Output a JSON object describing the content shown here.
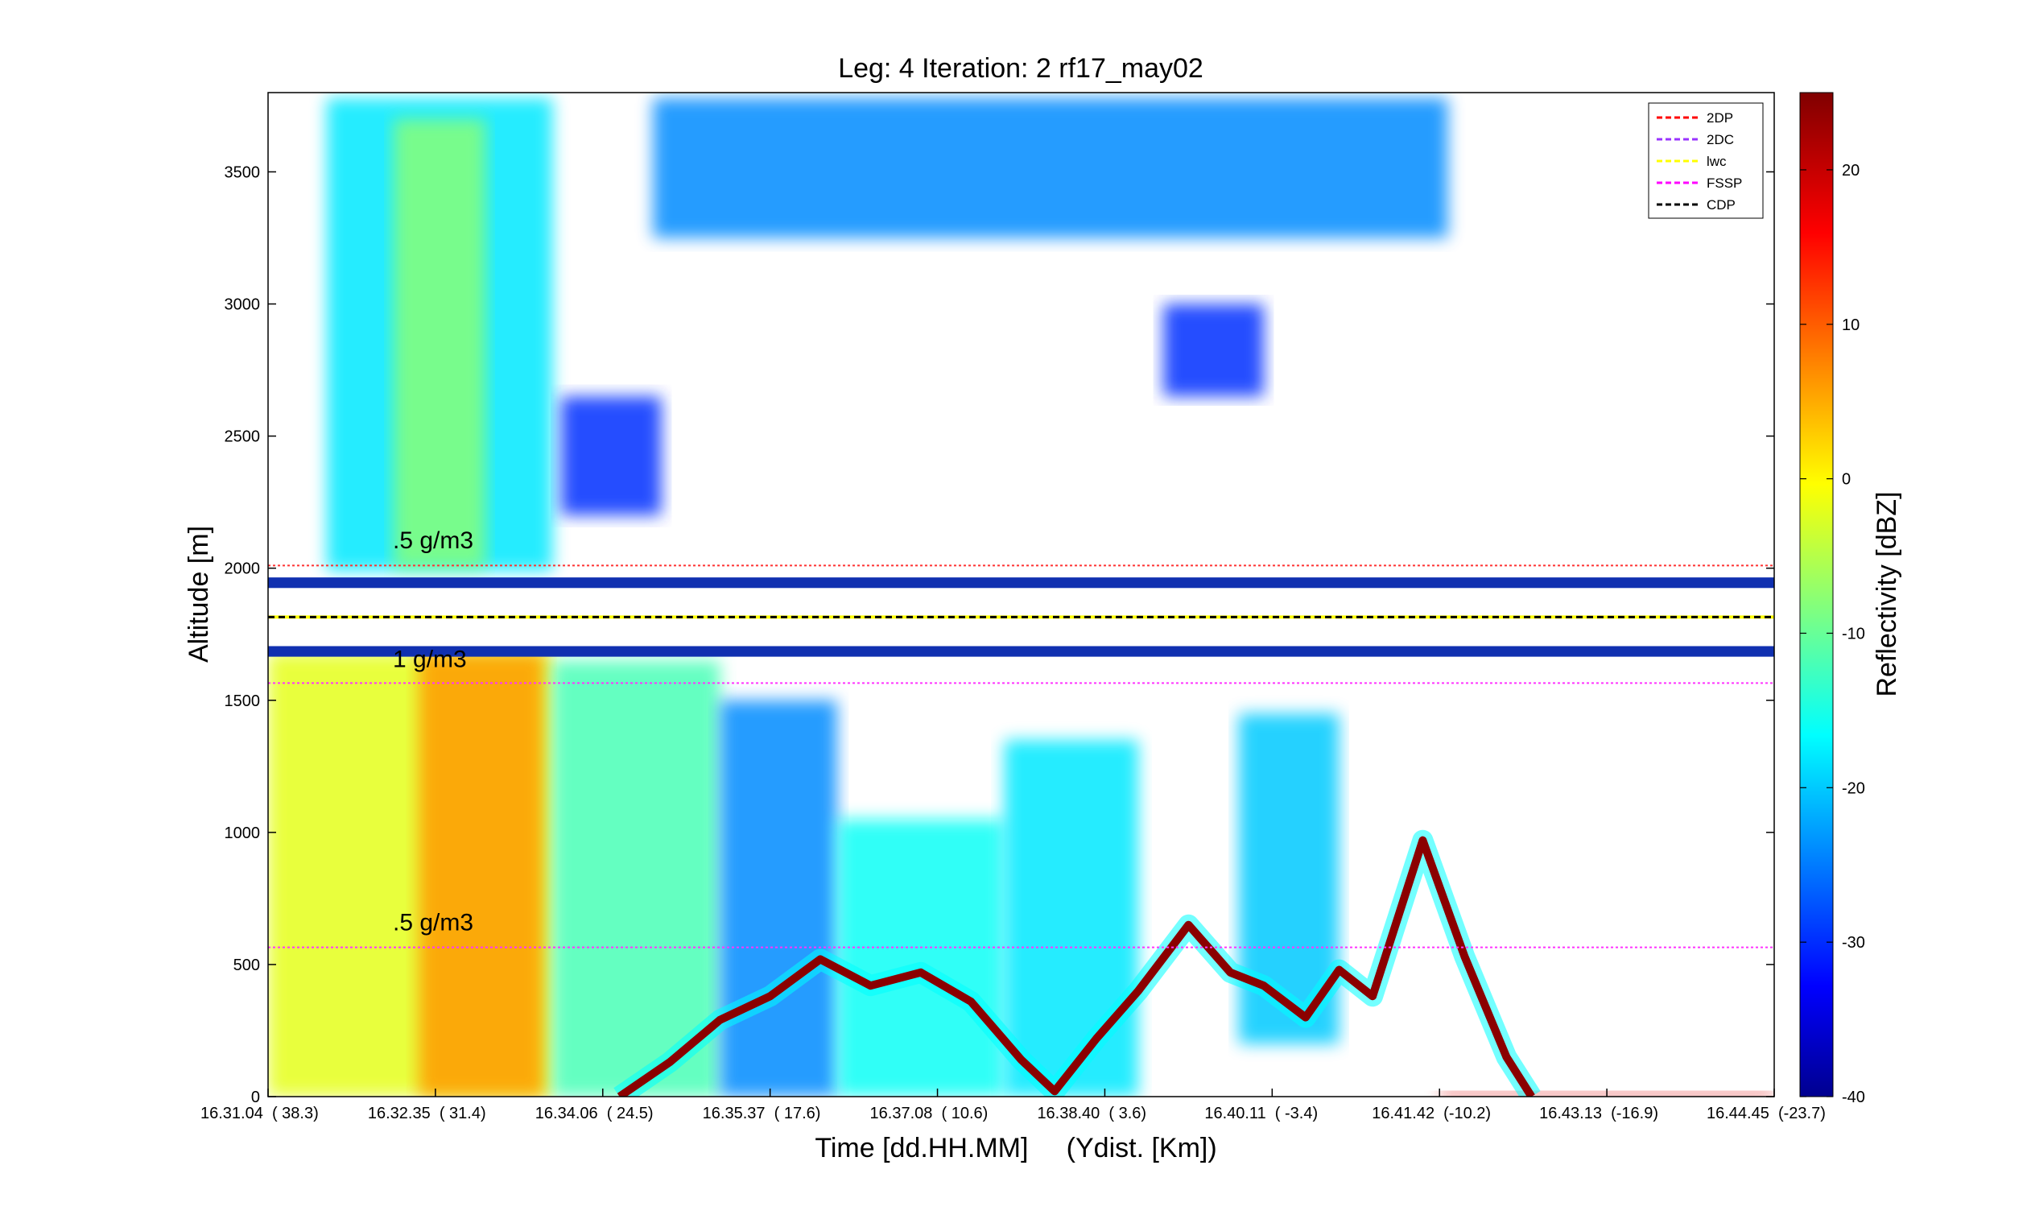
{
  "chart_data": {
    "type": "heatmap",
    "title": "Leg: 4  Iteration: 2  rf17_may02",
    "xlabel": "Time [dd.HH.MM]     (Ydist. [Km])",
    "ylabel": "Altitude [m]",
    "colorbar_label": "Reflectivity [dBZ]",
    "colormap": "jet",
    "ylim": [
      0,
      3800
    ],
    "yticks": [
      0,
      500,
      1000,
      1500,
      2000,
      2500,
      3000,
      3500
    ],
    "xtick_labels": [
      {
        "time": "16.31.04",
        "ydist": "( 38.3)"
      },
      {
        "time": "16.32.35",
        "ydist": "( 31.4)"
      },
      {
        "time": "16.34.06",
        "ydist": "( 24.5)"
      },
      {
        "time": "16.35.37",
        "ydist": "( 17.6)"
      },
      {
        "time": "16.37.08",
        "ydist": "( 10.6)"
      },
      {
        "time": "16.38.40",
        "ydist": "( 3.6)"
      },
      {
        "time": "16.40.11",
        "ydist": "( -3.4)"
      },
      {
        "time": "16.41.42",
        "ydist": "(-10.2)"
      },
      {
        "time": "16.43.13",
        "ydist": "(-16.9)"
      },
      {
        "time": "16.44.45",
        "ydist": "(-23.7)"
      }
    ],
    "x_range": [
      0,
      9
    ],
    "clim": [
      -40,
      25
    ],
    "colorbar_ticks": [
      -40,
      -30,
      -20,
      -10,
      0,
      10,
      20
    ],
    "legend_position": "top-right",
    "legend": [
      {
        "name": "2DP",
        "color": "#ff0000"
      },
      {
        "name": "2DC",
        "color": "#9933ff"
      },
      {
        "name": "lwc",
        "color": "#ffff00"
      },
      {
        "name": "FSSP",
        "color": "#ff00ff"
      },
      {
        "name": "CDP",
        "color": "#000000"
      }
    ],
    "reference_lines": [
      {
        "altitude": 2010,
        "color": "#ff3333"
      },
      {
        "altitude": 1565,
        "color": "#ff33ff"
      },
      {
        "altitude": 565,
        "color": "#ff33ff"
      }
    ],
    "flight_level": 1815,
    "annotations": [
      {
        "text": ".5 g/m3",
        "altitude": 2075
      },
      {
        "text": "1 g/m3",
        "altitude": 1625
      },
      {
        "text": ".5 g/m3",
        "altitude": 630
      }
    ],
    "echo_regions": [
      {
        "name": "upper cloud",
        "x0": 0.35,
        "x1": 1.7,
        "y0": 1990,
        "y1": 3780,
        "dbz": -18
      },
      {
        "name": "upper core",
        "x0": 0.75,
        "x1": 1.3,
        "y0": 2000,
        "y1": 3700,
        "dbz": -8
      },
      {
        "name": "mid patch",
        "x0": 1.75,
        "x1": 2.35,
        "y0": 2200,
        "y1": 2650,
        "dbz": -30
      },
      {
        "name": "high thin band",
        "x0": 2.3,
        "x1": 7.05,
        "y0": 3250,
        "y1": 3780,
        "dbz": -24
      },
      {
        "name": "high streak",
        "x0": 5.35,
        "x1": 5.95,
        "y0": 2650,
        "y1": 3000,
        "dbz": -30
      },
      {
        "name": "low cloud A",
        "x0": 0.0,
        "x1": 1.7,
        "y0": 0,
        "y1": 1680,
        "dbz": -2
      },
      {
        "name": "low core A",
        "x0": 0.9,
        "x1": 1.65,
        "y0": 0,
        "y1": 1680,
        "dbz": 6
      },
      {
        "name": "low cloud B",
        "x0": 1.7,
        "x1": 2.7,
        "y0": 0,
        "y1": 1650,
        "dbz": -12
      },
      {
        "name": "low cloud C",
        "x0": 2.7,
        "x1": 3.4,
        "y0": 0,
        "y1": 1500,
        "dbz": -24
      },
      {
        "name": "low cloud D",
        "x0": 3.4,
        "x1": 4.4,
        "y0": 0,
        "y1": 1050,
        "dbz": -16
      },
      {
        "name": "low cloud E",
        "x0": 4.4,
        "x1": 5.2,
        "y0": 0,
        "y1": 1350,
        "dbz": -18
      },
      {
        "name": "low cloud F",
        "x0": 5.8,
        "x1": 6.4,
        "y0": 200,
        "y1": 1450,
        "dbz": -20
      },
      {
        "name": "surface echo",
        "x0": 7.0,
        "x1": 9.0,
        "y0": 0,
        "y1": 20,
        "dbz": 18
      }
    ],
    "surface_return": [
      {
        "x": 2.1,
        "alt": 0
      },
      {
        "x": 2.4,
        "alt": 130
      },
      {
        "x": 2.7,
        "alt": 290
      },
      {
        "x": 3.0,
        "alt": 380
      },
      {
        "x": 3.3,
        "alt": 520
      },
      {
        "x": 3.6,
        "alt": 420
      },
      {
        "x": 3.9,
        "alt": 470
      },
      {
        "x": 4.2,
        "alt": 360
      },
      {
        "x": 4.5,
        "alt": 140
      },
      {
        "x": 4.7,
        "alt": 20
      },
      {
        "x": 4.95,
        "alt": 220
      },
      {
        "x": 5.2,
        "alt": 400
      },
      {
        "x": 5.5,
        "alt": 650
      },
      {
        "x": 5.75,
        "alt": 470
      },
      {
        "x": 5.95,
        "alt": 420
      },
      {
        "x": 6.2,
        "alt": 300
      },
      {
        "x": 6.4,
        "alt": 480
      },
      {
        "x": 6.6,
        "alt": 380
      },
      {
        "x": 6.9,
        "alt": 970
      },
      {
        "x": 7.15,
        "alt": 530
      },
      {
        "x": 7.4,
        "alt": 150
      },
      {
        "x": 7.55,
        "alt": 0
      }
    ]
  }
}
